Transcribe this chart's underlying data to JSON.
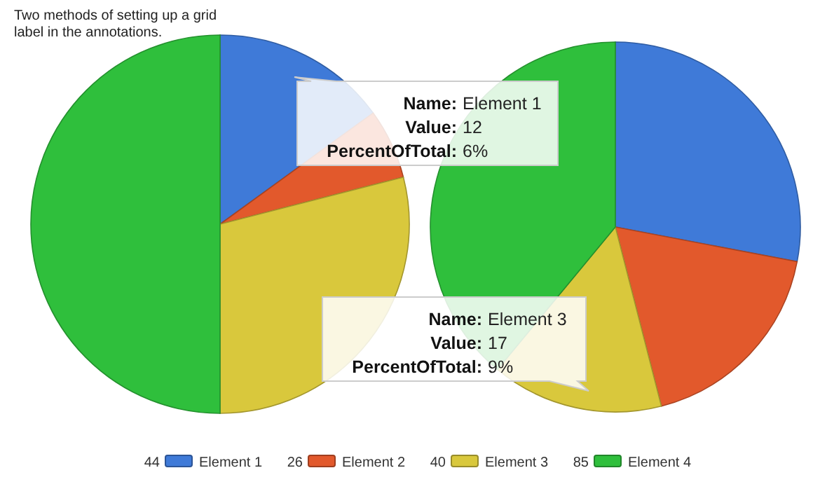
{
  "chart_data": {
    "type": "pie",
    "title": "Two methods of setting up a grid\nlabel in the annotations.",
    "categories": [
      "Element 1",
      "Element 2",
      "Element 3",
      "Element 4"
    ],
    "colors": [
      "#3f7ad8",
      "#e2592c",
      "#d9c83c",
      "#2fbf3c"
    ],
    "totals": [
      "44",
      "26",
      "40",
      "85"
    ],
    "legend": "bottom",
    "series": [
      {
        "values": [
          15,
          6,
          29,
          50
        ]
      },
      {
        "values": [
          28,
          18,
          15,
          39
        ]
      }
    ],
    "annotations": [
      "Name: Element 1\nValue: 12\nPercentOfTotal: 6%",
      "Name: Element 3\nValue: 17\nPercentOfTotal: 9%"
    ]
  }
}
